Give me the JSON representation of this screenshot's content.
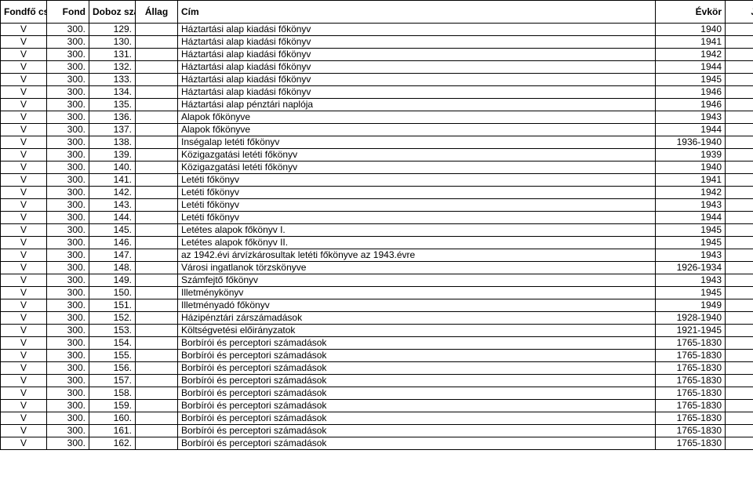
{
  "table": {
    "columns": [
      "Fondfő csop",
      "Fond",
      "Doboz szám",
      "Állag",
      "Cím",
      "Évkör",
      "Jelzet"
    ],
    "rows": [
      [
        "V",
        "300.",
        "129.",
        "",
        "Háztartási alap kiadási főkönyv",
        "1940",
        ""
      ],
      [
        "V",
        "300.",
        "130.",
        "",
        "Háztartási alap kiadási főkönyv",
        "1941",
        ""
      ],
      [
        "V",
        "300.",
        "131.",
        "",
        "Háztartási alap kiadási főkönyv",
        "1942",
        ""
      ],
      [
        "V",
        "300.",
        "132.",
        "",
        "Háztartási alap kiadási főkönyv",
        "1944",
        ""
      ],
      [
        "V",
        "300.",
        "133.",
        "",
        "Háztartási alap kiadási főkönyv",
        "1945",
        ""
      ],
      [
        "V",
        "300.",
        "134.",
        "",
        "Háztartási alap kiadási főkönyv",
        "1946",
        ""
      ],
      [
        "V",
        "300.",
        "135.",
        "",
        "Háztartási alap pénztári naplója",
        "1946",
        ""
      ],
      [
        "V",
        "300.",
        "136.",
        "",
        "Alapok főkönyve",
        "1943",
        ""
      ],
      [
        "V",
        "300.",
        "137.",
        "",
        "Alapok főkönyve",
        "1944",
        ""
      ],
      [
        "V",
        "300.",
        "138.",
        "",
        "Inségalap letéti főkönyv",
        "1936-1940",
        ""
      ],
      [
        "V",
        "300.",
        "139.",
        "",
        "Közigazgatási letéti főkönyv",
        "1939",
        ""
      ],
      [
        "V",
        "300.",
        "140.",
        "",
        "Közigazgatási letéti főkönyv",
        "1940",
        ""
      ],
      [
        "V",
        "300.",
        "141.",
        "",
        "Letéti főkönyv",
        "1941",
        ""
      ],
      [
        "V",
        "300.",
        "142.",
        "",
        "Letéti főkönyv",
        "1942",
        ""
      ],
      [
        "V",
        "300.",
        "143.",
        "",
        "Letéti főkönyv",
        "1943",
        ""
      ],
      [
        "V",
        "300.",
        "144.",
        "",
        "Letéti főkönyv",
        "1944",
        ""
      ],
      [
        "V",
        "300.",
        "145.",
        "",
        "Letétes alapok főkönyv I.",
        "1945",
        ""
      ],
      [
        "V",
        "300.",
        "146.",
        "",
        "Letétes alapok főkönyv II.",
        "1945",
        ""
      ],
      [
        "V",
        "300.",
        "147.",
        "",
        "az 1942.évi árvízkárosultak letéti főkönyve az 1943.évre",
        "1943",
        ""
      ],
      [
        "V",
        "300.",
        "148.",
        "",
        "Városi ingatlanok törzskönyve",
        "1926-1934",
        ""
      ],
      [
        "V",
        "300.",
        "149.",
        "",
        "Számfejtő főkönyv",
        "1943",
        ""
      ],
      [
        "V",
        "300.",
        "150.",
        "",
        "Illetménykönyv",
        "1945",
        ""
      ],
      [
        "V",
        "300.",
        "151.",
        "",
        "Illetményadó főkönyv",
        "1949",
        ""
      ],
      [
        "V",
        "300.",
        "152.",
        "",
        "Házipénztári zárszámadások",
        "1928-1940",
        ""
      ],
      [
        "V",
        "300.",
        "153.",
        "",
        "Költségvetési előirányzatok",
        "1921-1945",
        ""
      ],
      [
        "V",
        "300.",
        "154.",
        "",
        "Borbírói és perceptori számadások",
        "1765-1830",
        ""
      ],
      [
        "V",
        "300.",
        "155.",
        "",
        "Borbírói és perceptori számadások",
        "1765-1830",
        ""
      ],
      [
        "V",
        "300.",
        "156.",
        "",
        "Borbírói és perceptori számadások",
        "1765-1830",
        ""
      ],
      [
        "V",
        "300.",
        "157.",
        "",
        "Borbírói és perceptori számadások",
        "1765-1830",
        ""
      ],
      [
        "V",
        "300.",
        "158.",
        "",
        "Borbírói és perceptori számadások",
        "1765-1830",
        ""
      ],
      [
        "V",
        "300.",
        "159.",
        "",
        "Borbírói és perceptori számadások",
        "1765-1830",
        ""
      ],
      [
        "V",
        "300.",
        "160.",
        "",
        "Borbírói és perceptori számadások",
        "1765-1830",
        ""
      ],
      [
        "V",
        "300.",
        "161.",
        "",
        "Borbírói és perceptori számadások",
        "1765-1830",
        ""
      ],
      [
        "V",
        "300.",
        "162.",
        "",
        "Borbírói és perceptori számadások",
        "1765-1830",
        ""
      ]
    ],
    "border_color": "#000000",
    "background_color": "#ffffff",
    "font_size": 12,
    "header_font_weight": "bold"
  }
}
